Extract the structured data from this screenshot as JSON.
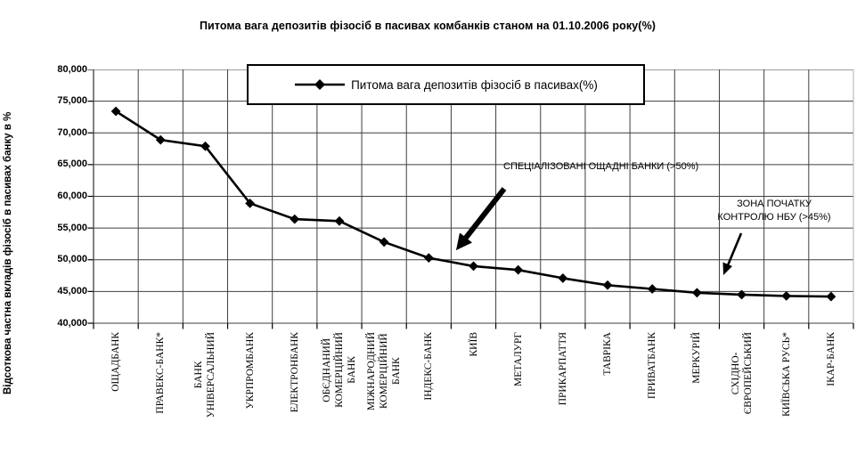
{
  "page": {
    "title": "Питома вага депозитів фізосіб в пасивах комбанків станом на 01.10.2006 року(%)"
  },
  "chart_data": {
    "type": "line",
    "title": "Питома вага депозитів фізосіб в пасивах комбанків станом на 01.10.2006 року(%)",
    "ylabel": "Відсоткова частна вкладів фізосіб в пасивах банку в %",
    "xlabel": "",
    "legend": [
      "Питома вага депозитів фізосіб в пасивах(%)"
    ],
    "legend_position": "top-center-inside",
    "grid": true,
    "marker": "diamond",
    "line_color": "#000000",
    "ylim": [
      40000,
      80000
    ],
    "ytick_step": 5000,
    "ytick_labels": [
      "80,000",
      "75,000",
      "70,000",
      "65,000",
      "60,000",
      "55,000",
      "50,000",
      "45,000",
      "40,000"
    ],
    "categories": [
      "ОЩАДБАНК",
      "ПРАВЕКС-БАНК*",
      "БАНК УНІВЕРСАЛЬНИЙ",
      "УКРПРОМБАНК",
      "ЕЛЕКТРОНБАНК",
      "ОБЄДНАНИЙ КОМЕРЦІЙНИЙ БАНК",
      "МІЖНАРОДНИЙ КОМЕРЦІЙНИЙ БАНК",
      "ІНДЕКС-БАНК",
      "КИЇВ",
      "МЕТАЛУРГ",
      "ПРИКАРПАТТЯ",
      "ТАВРІКА",
      "ПРИВАТБАНК",
      "МЕРКУРІЙ",
      "СХІДНО-ЄВРОПЕЙСЬКИЙ",
      "КИЇВСЬКА РУСЬ*",
      "ІКАР-БАНК"
    ],
    "categories_display": [
      "ОЩАДБАНК",
      "ПРАВЕКС-БАНК*",
      "БАНК\nУНІВЕРСАЛЬНИЙ",
      "УКРПРОМБАНК",
      "ЕЛЕКТРОНБАНК",
      "ОБЄДНАНИЙ\nКОМЕРЦІЙНИЙ\nБАНК",
      "МІЖНАРОДНИЙ\nКОМЕРЦІЙНИЙ\nБАНК",
      "ІНДЕКС-БАНК",
      "КИЇВ",
      "МЕТАЛУРГ",
      "ПРИКАРПАТТЯ",
      "ТАВРІКА",
      "ПРИВАТБАНК",
      "МЕРКУРІЙ",
      "СХІДНО-\nЄВРОПЕЙСЬКИЙ",
      "КИЇВСЬКА РУСЬ*",
      "ІКАР-БАНК"
    ],
    "series": [
      {
        "name": "Питома вага депозитів фізосіб в пасивах(%)",
        "values": [
          73400,
          68900,
          67900,
          58900,
          56400,
          56100,
          52800,
          50300,
          49000,
          48400,
          47100,
          46000,
          45400,
          44800,
          44500,
          44300,
          44200
        ]
      }
    ],
    "annotations": [
      {
        "text": "СПЕЦІАЛІЗОВАНІ ОЩАДНІ БАНКИ (>50%)"
      },
      {
        "text": "ЗОНА ПОЧАТКУ\nКОНТРОЛЮ НБУ (>45%)"
      }
    ],
    "colors": {
      "line": "#000000",
      "grid": "#3f3f3f",
      "plot_right_border": "#b0b0b0",
      "background": "#ffffff",
      "text": "#000000"
    }
  }
}
